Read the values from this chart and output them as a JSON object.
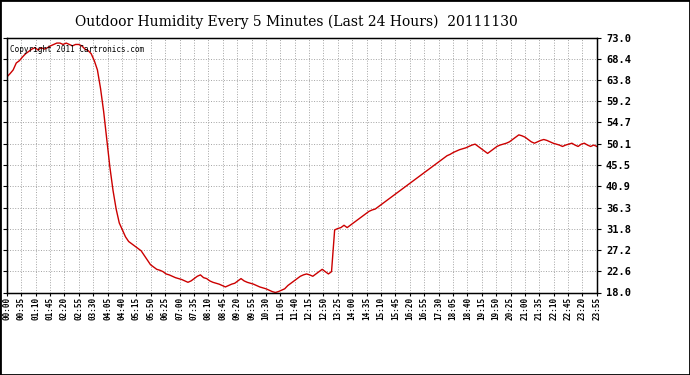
{
  "title": "Outdoor Humidity Every 5 Minutes (Last 24 Hours)  20111130",
  "copyright_text": "Copyright 2011 Cartronics.com",
  "line_color": "#cc0000",
  "background_color": "#ffffff",
  "plot_bg_color": "#ffffff",
  "grid_color": "#999999",
  "outer_border_color": "#000000",
  "ylim": [
    18.0,
    73.0
  ],
  "yticks": [
    18.0,
    22.6,
    27.2,
    31.8,
    36.3,
    40.9,
    45.5,
    50.1,
    54.7,
    59.2,
    63.8,
    68.4,
    73.0
  ],
  "xtick_labels": [
    "00:00",
    "00:35",
    "01:10",
    "01:45",
    "02:20",
    "02:55",
    "03:30",
    "04:05",
    "04:40",
    "05:15",
    "05:50",
    "06:25",
    "07:00",
    "07:35",
    "08:10",
    "08:45",
    "09:20",
    "09:55",
    "10:30",
    "11:05",
    "11:40",
    "12:15",
    "12:50",
    "13:25",
    "14:00",
    "14:35",
    "15:10",
    "15:45",
    "16:20",
    "16:55",
    "17:30",
    "18:05",
    "18:40",
    "19:15",
    "19:50",
    "20:25",
    "21:00",
    "21:35",
    "22:10",
    "22:45",
    "23:20",
    "23:55"
  ],
  "humidity_values": [
    64.5,
    65.2,
    66.0,
    67.5,
    68.0,
    68.8,
    69.5,
    70.0,
    70.5,
    70.8,
    70.3,
    70.8,
    70.5,
    70.8,
    71.2,
    71.5,
    71.8,
    71.8,
    71.5,
    71.8,
    71.5,
    71.2,
    71.5,
    71.5,
    71.2,
    70.5,
    70.2,
    69.5,
    68.0,
    66.0,
    62.0,
    57.0,
    51.0,
    45.0,
    40.0,
    36.0,
    33.0,
    31.5,
    30.0,
    29.0,
    28.5,
    28.0,
    27.5,
    27.0,
    26.0,
    25.0,
    24.0,
    23.5,
    23.0,
    22.8,
    22.5,
    22.0,
    21.8,
    21.5,
    21.2,
    21.0,
    20.8,
    20.5,
    20.2,
    20.5,
    21.0,
    21.5,
    21.8,
    21.2,
    21.0,
    20.5,
    20.2,
    20.0,
    19.8,
    19.5,
    19.2,
    19.5,
    19.8,
    20.0,
    20.5,
    21.0,
    20.5,
    20.2,
    20.0,
    19.8,
    19.5,
    19.2,
    19.0,
    18.8,
    18.5,
    18.2,
    18.0,
    18.2,
    18.5,
    18.8,
    19.5,
    20.0,
    20.5,
    21.0,
    21.5,
    21.8,
    22.0,
    21.8,
    21.5,
    22.0,
    22.5,
    23.0,
    22.5,
    22.0,
    22.5,
    31.5,
    31.8,
    32.0,
    32.5,
    32.0,
    32.5,
    33.0,
    33.5,
    34.0,
    34.5,
    35.0,
    35.5,
    35.8,
    36.0,
    36.5,
    37.0,
    37.5,
    38.0,
    38.5,
    39.0,
    39.5,
    40.0,
    40.5,
    41.0,
    41.5,
    42.0,
    42.5,
    43.0,
    43.5,
    44.0,
    44.5,
    45.0,
    45.5,
    46.0,
    46.5,
    47.0,
    47.5,
    47.8,
    48.2,
    48.5,
    48.8,
    49.0,
    49.2,
    49.5,
    49.8,
    50.0,
    49.5,
    49.0,
    48.5,
    48.0,
    48.5,
    49.0,
    49.5,
    49.8,
    50.0,
    50.2,
    50.5,
    51.0,
    51.5,
    52.0,
    51.8,
    51.5,
    51.0,
    50.5,
    50.2,
    50.5,
    50.8,
    51.0,
    50.8,
    50.5,
    50.2,
    50.0,
    49.8,
    49.5,
    49.8,
    50.0,
    50.2,
    49.8,
    49.5,
    50.0,
    50.2,
    49.8,
    49.5,
    49.8,
    49.5
  ]
}
